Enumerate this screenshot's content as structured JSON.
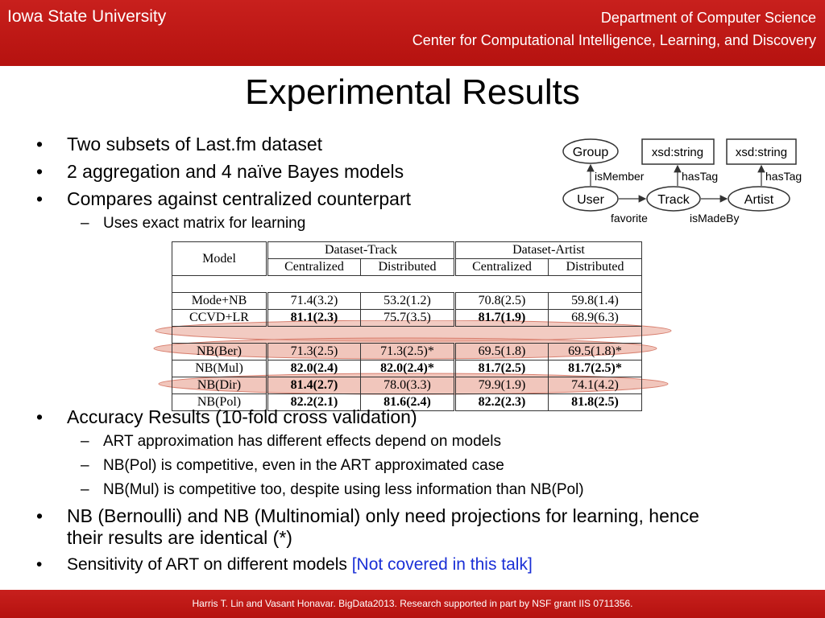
{
  "header": {
    "university": "Iowa State University",
    "department": "Department of Computer Science",
    "center": "Center for Computational Intelligence, Learning, and Discovery"
  },
  "slide_title": "Experimental Results",
  "bullets_top": [
    "Two subsets of Last.fm dataset",
    "2 aggregation and 4 naïve Bayes models",
    "Compares against centralized counterpart"
  ],
  "sub_top": "Uses exact matrix for learning",
  "diagram": {
    "nodes": {
      "group": "Group",
      "user": "User",
      "track": "Track",
      "artist": "Artist",
      "xsd1": "xsd:string",
      "xsd2": "xsd:string"
    },
    "edges": {
      "is_member": "isMember",
      "has_tag1": "hasTag",
      "has_tag2": "hasTag",
      "favorite": "favorite",
      "is_made_by": "isMadeBy"
    }
  },
  "table": {
    "model_header": "Model",
    "group_headers": [
      "Dataset-Track",
      "Dataset-Artist"
    ],
    "sub_headers": [
      "Centralized",
      "Distributed",
      "Centralized",
      "Distributed"
    ],
    "rows": [
      {
        "model": "Mode+NB",
        "cells": [
          "71.4(3.2)",
          "53.2(1.2)",
          "70.8(2.5)",
          "59.8(1.4)"
        ],
        "bold": [
          false,
          false,
          false,
          false
        ]
      },
      {
        "model": "CCVD+LR",
        "cells": [
          "81.1(2.3)",
          "75.7(3.5)",
          "81.7(1.9)",
          "68.9(6.3)"
        ],
        "bold": [
          true,
          false,
          true,
          false
        ]
      },
      {
        "model": "NB(Ber)",
        "cells": [
          "71.3(2.5)",
          "71.3(2.5)*",
          "69.5(1.8)",
          "69.5(1.8)*"
        ],
        "bold": [
          false,
          false,
          false,
          false
        ]
      },
      {
        "model": "NB(Mul)",
        "cells": [
          "82.0(2.4)",
          "82.0(2.4)*",
          "81.7(2.5)",
          "81.7(2.5)*"
        ],
        "bold": [
          true,
          true,
          true,
          true
        ]
      },
      {
        "model": "NB(Dir)",
        "cells": [
          "81.4(2.7)",
          "78.0(3.3)",
          "79.9(1.9)",
          "74.1(4.2)"
        ],
        "bold": [
          true,
          false,
          false,
          false
        ]
      },
      {
        "model": "NB(Pol)",
        "cells": [
          "82.2(2.1)",
          "81.6(2.4)",
          "82.2(2.3)",
          "81.8(2.5)"
        ],
        "bold": [
          true,
          true,
          true,
          true
        ]
      }
    ]
  },
  "bullets_bottom": {
    "accuracy": "Accuracy Results (10-fold cross validation)",
    "subs": [
      "ART approximation has different effects depend on models",
      "NB(Pol) is competitive, even in the ART approximated case",
      "NB(Mul) is competitive too, despite using less information than NB(Pol)"
    ],
    "nb_line1": "NB (Bernoulli) and NB (Multinomial) only need projections for learning, hence",
    "nb_line2": "their results are identical (*)",
    "sensitivity": "Sensitivity of ART on different models",
    "not_covered": "[Not covered in this talk]"
  },
  "footer": "Harris T. Lin and Vasant Honavar. BigData2013. Research supported in part by NSF grant  IIS  0711356.",
  "colors": {
    "header_red": "#c0191a",
    "highlight": "#e8a090",
    "link_blue": "#1a2fd6"
  },
  "symbols": {
    "bullet": "•",
    "dash": "–"
  }
}
